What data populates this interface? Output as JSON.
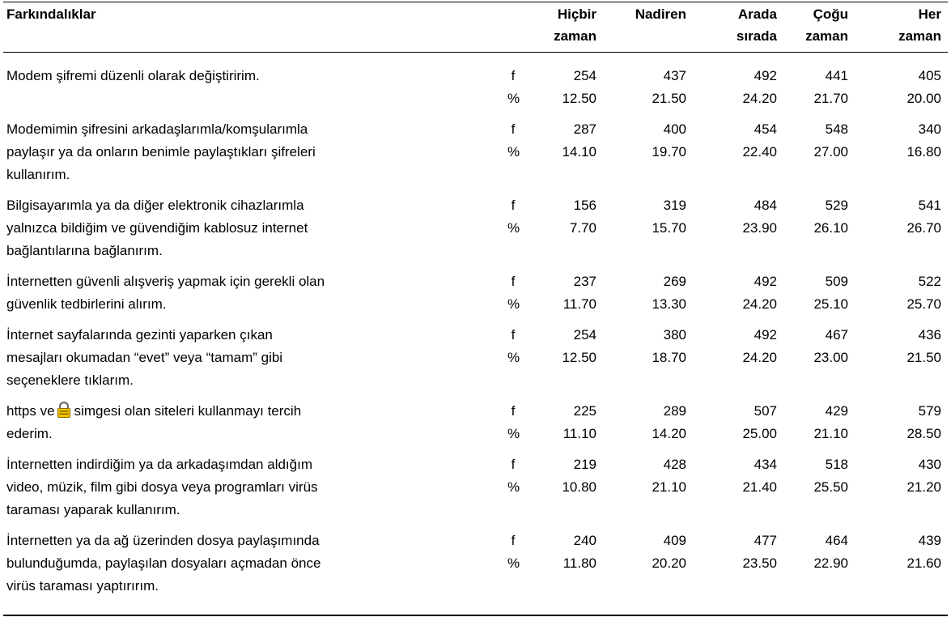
{
  "table": {
    "header": [
      "Farkındalıklar",
      "Hiçbir zaman",
      "Nadiren",
      "Arada sırada",
      "Çoğu zaman",
      "Her zaman"
    ],
    "rows": [
      {
        "statement": [
          "Modem şifremi düzenli olarak değiştiririm."
        ],
        "f_label": "f",
        "f": [
          "254",
          "437",
          "492",
          "441",
          "405"
        ],
        "p_label": "%",
        "p": [
          "12.50",
          "21.50",
          "24.20",
          "21.70",
          "20.00"
        ]
      },
      {
        "statement": [
          "Modemimin şifresini arkadaşlarımla/komşularımla",
          "paylaşır ya da onların benimle paylaştıkları şifreleri",
          "kullanırım."
        ],
        "f_label": "f",
        "f": [
          "287",
          "400",
          "454",
          "548",
          "340"
        ],
        "p_label": "%",
        "p": [
          "14.10",
          "19.70",
          "22.40",
          "27.00",
          "16.80"
        ]
      },
      {
        "statement": [
          "Bilgisayarımla ya da diğer elektronik cihazlarımla",
          "yalnızca bildiğim ve güvendiğim kablosuz internet",
          "bağlantılarına bağlanırım."
        ],
        "f_label": "f",
        "f": [
          "156",
          "319",
          "484",
          "529",
          "541"
        ],
        "p_label": "%",
        "p": [
          "7.70",
          "15.70",
          "23.90",
          "26.10",
          "26.70"
        ]
      },
      {
        "statement": [
          "İnternetten güvenli alışveriş yapmak için gerekli olan",
          "güvenlik tedbirlerini alırım."
        ],
        "f_label": "f",
        "f": [
          "237",
          "269",
          "492",
          "509",
          "522"
        ],
        "p_label": "%",
        "p": [
          "11.70",
          "13.30",
          "24.20",
          "25.10",
          "25.70"
        ]
      },
      {
        "statement": [
          "İnternet sayfalarında gezinti yaparken çıkan",
          "mesajları okumadan “evet” veya “tamam” gibi",
          "seçeneklere tıklarım."
        ],
        "f_label": "f",
        "f": [
          "254",
          "380",
          "492",
          "467",
          "436"
        ],
        "p_label": "%",
        "p": [
          "12.50",
          "18.70",
          "24.20",
          "23.00",
          "21.50"
        ]
      },
      {
        "statement": [
          [
            "https ve",
            "simgesi olan siteleri kullanmayı tercih"
          ],
          "ederim."
        ],
        "f_label": "f",
        "f": [
          "225",
          "289",
          "507",
          "429",
          "579"
        ],
        "p_label": "%",
        "p": [
          "11.10",
          "14.20",
          "25.00",
          "21.10",
          "28.50"
        ]
      },
      {
        "statement": [
          "İnternetten indirdiğim ya da arkadaşımdan aldığım",
          "video, müzik, film gibi dosya veya programları virüs",
          "taraması yaparak kullanırım."
        ],
        "f_label": "f",
        "f": [
          "219",
          "428",
          "434",
          "518",
          "430"
        ],
        "p_label": "%",
        "p": [
          "10.80",
          "21.10",
          "21.40",
          "25.50",
          "21.20"
        ]
      },
      {
        "statement": [
          "İnternetten ya da ağ üzerinden dosya paylaşımında",
          "bulunduğumda, paylaşılan dosyaları açmadan önce",
          "virüs taraması yaptırırım."
        ],
        "f_label": "f",
        "f": [
          "240",
          "409",
          "477",
          "464",
          "439"
        ],
        "p_label": "%",
        "p": [
          "11.80",
          "20.20",
          "23.50",
          "22.90",
          "21.60"
        ]
      }
    ]
  }
}
